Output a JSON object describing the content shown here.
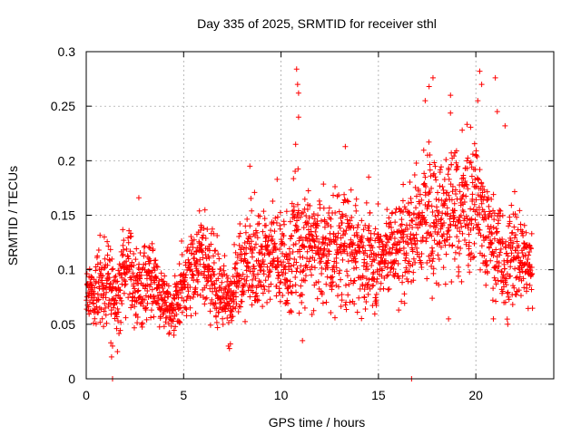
{
  "chart_data": {
    "type": "scatter",
    "title": "Day 335 of 2025, SRMTID for receiver sthl",
    "xlabel": "GPS time / hours",
    "ylabel": "SRMTID / TECUs",
    "xlim": [
      0,
      24
    ],
    "ylim": [
      0,
      0.3
    ],
    "x_ticks": [
      0,
      5,
      10,
      15,
      20
    ],
    "x_tick_labels": [
      "0",
      "5",
      "10",
      "15",
      "20"
    ],
    "y_ticks": [
      0,
      0.05,
      0.1,
      0.15,
      0.2,
      0.25,
      0.3
    ],
    "y_tick_labels": [
      "0",
      "0.05",
      "0.1",
      "0.15",
      "0.2",
      "0.25",
      "0.3"
    ],
    "grid": true,
    "marker": "+",
    "color": "#ff0000",
    "series": [
      {
        "name": "SRMTID",
        "trend_x": [
          0,
          0.5,
          1,
          1.5,
          2,
          2.5,
          3,
          3.5,
          4,
          4.5,
          5,
          5.5,
          6,
          6.5,
          7,
          7.5,
          8,
          8.5,
          9,
          9.5,
          10,
          10.5,
          11,
          11.5,
          12,
          12.5,
          13,
          13.5,
          14,
          14.5,
          15,
          15.5,
          16,
          16.5,
          17,
          17.5,
          18,
          18.5,
          19,
          19.5,
          20,
          20.5,
          21,
          21.5,
          22,
          22.5,
          22.9
        ],
        "trend_y": [
          0.075,
          0.085,
          0.09,
          0.08,
          0.095,
          0.09,
          0.085,
          0.09,
          0.07,
          0.065,
          0.085,
          0.11,
          0.105,
          0.095,
          0.085,
          0.07,
          0.1,
          0.115,
          0.11,
          0.115,
          0.11,
          0.115,
          0.125,
          0.13,
          0.12,
          0.115,
          0.12,
          0.12,
          0.11,
          0.11,
          0.11,
          0.12,
          0.125,
          0.13,
          0.145,
          0.155,
          0.16,
          0.155,
          0.15,
          0.16,
          0.17,
          0.14,
          0.12,
          0.11,
          0.115,
          0.11,
          0.105
        ],
        "spread": [
          0.025,
          0.03,
          0.035,
          0.03,
          0.035,
          0.03,
          0.03,
          0.03,
          0.02,
          0.02,
          0.03,
          0.035,
          0.035,
          0.035,
          0.03,
          0.025,
          0.04,
          0.045,
          0.04,
          0.04,
          0.045,
          0.05,
          0.05,
          0.045,
          0.04,
          0.04,
          0.045,
          0.045,
          0.04,
          0.04,
          0.035,
          0.035,
          0.04,
          0.04,
          0.045,
          0.05,
          0.055,
          0.055,
          0.05,
          0.05,
          0.055,
          0.05,
          0.045,
          0.04,
          0.04,
          0.035,
          0.03
        ],
        "num_points": 2400,
        "outliers": [
          {
            "x": 1.35,
            "y": 0.0
          },
          {
            "x": 16.7,
            "y": 0.0
          },
          {
            "x": 2.7,
            "y": 0.166
          },
          {
            "x": 8.4,
            "y": 0.195
          },
          {
            "x": 10.8,
            "y": 0.284
          },
          {
            "x": 10.85,
            "y": 0.27
          },
          {
            "x": 10.9,
            "y": 0.262
          },
          {
            "x": 10.9,
            "y": 0.24
          },
          {
            "x": 10.75,
            "y": 0.215
          },
          {
            "x": 13.3,
            "y": 0.213
          },
          {
            "x": 14.5,
            "y": 0.185
          },
          {
            "x": 17.8,
            "y": 0.276
          },
          {
            "x": 17.6,
            "y": 0.268
          },
          {
            "x": 17.4,
            "y": 0.255
          },
          {
            "x": 18.7,
            "y": 0.26
          },
          {
            "x": 19.3,
            "y": 0.228
          },
          {
            "x": 20.2,
            "y": 0.282
          },
          {
            "x": 20.3,
            "y": 0.27
          },
          {
            "x": 20.1,
            "y": 0.255
          },
          {
            "x": 21.0,
            "y": 0.276
          },
          {
            "x": 21.1,
            "y": 0.245
          },
          {
            "x": 21.5,
            "y": 0.232
          },
          {
            "x": 1.35,
            "y": 0.03
          },
          {
            "x": 1.3,
            "y": 0.02
          },
          {
            "x": 7.3,
            "y": 0.03
          },
          {
            "x": 7.4,
            "y": 0.032
          },
          {
            "x": 11.1,
            "y": 0.035
          },
          {
            "x": 18.6,
            "y": 0.055
          },
          {
            "x": 20.9,
            "y": 0.055
          },
          {
            "x": 4.0,
            "y": 0.048
          },
          {
            "x": 4.5,
            "y": 0.04
          }
        ]
      }
    ]
  }
}
